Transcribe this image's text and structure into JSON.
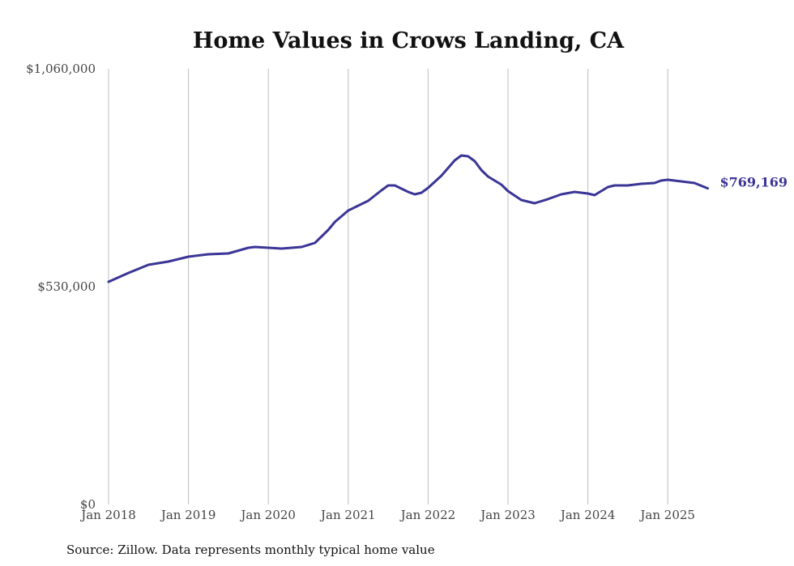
{
  "chart_data": {
    "type": "line",
    "title": "Home Values in Crows Landing, CA",
    "xlabel": "",
    "ylabel": "",
    "ylim": [
      0,
      1060000
    ],
    "y_ticks": [
      "$0",
      "$530,000",
      "$1,060,000"
    ],
    "y_tick_values": [
      0,
      530000,
      1060000
    ],
    "x_ticks": [
      "Jan 2018",
      "Jan 2019",
      "Jan 2020",
      "Jan 2021",
      "Jan 2022",
      "Jan 2023",
      "Jan 2024",
      "Jan 2025"
    ],
    "x_tick_values": [
      2018,
      2019,
      2020,
      2021,
      2022,
      2023,
      2024,
      2025
    ],
    "grid": "vertical",
    "end_label": "$769,169",
    "line_color": "#3a3596",
    "series": [
      {
        "name": "Typical home value",
        "x": [
          "2018-01",
          "2018-04",
          "2018-07",
          "2018-10",
          "2019-01",
          "2019-04",
          "2019-07",
          "2019-10",
          "2019-11",
          "2020-01",
          "2020-03",
          "2020-06",
          "2020-08",
          "2020-10",
          "2020-11",
          "2021-01",
          "2021-04",
          "2021-06",
          "2021-07",
          "2021-08",
          "2021-10",
          "2021-11",
          "2021-12",
          "2022-01",
          "2022-03",
          "2022-05",
          "2022-06",
          "2022-07",
          "2022-08",
          "2022-09",
          "2022-10",
          "2022-12",
          "2023-01",
          "2023-03",
          "2023-05",
          "2023-07",
          "2023-09",
          "2023-11",
          "2024-01",
          "2024-02",
          "2024-04",
          "2024-05",
          "2024-07",
          "2024-09",
          "2024-11",
          "2024-12",
          "2025-01",
          "2025-03",
          "2025-05",
          "2025-07"
        ],
        "values": [
          541900,
          563500,
          583200,
          591100,
          602900,
          608800,
          610800,
          624600,
          626600,
          624600,
          622600,
          626600,
          636400,
          667900,
          687700,
          715200,
          738900,
          764500,
          776300,
          776300,
          760500,
          754600,
          758600,
          770400,
          800000,
          837400,
          849200,
          847300,
          835400,
          813800,
          798000,
          778300,
          762500,
          740900,
          733000,
          742900,
          754600,
          760500,
          756600,
          752700,
          772400,
          776300,
          776300,
          780300,
          782200,
          788100,
          790100,
          786100,
          782200,
          769169
        ]
      }
    ],
    "source": "Source: Zillow. Data represents monthly typical home value"
  }
}
